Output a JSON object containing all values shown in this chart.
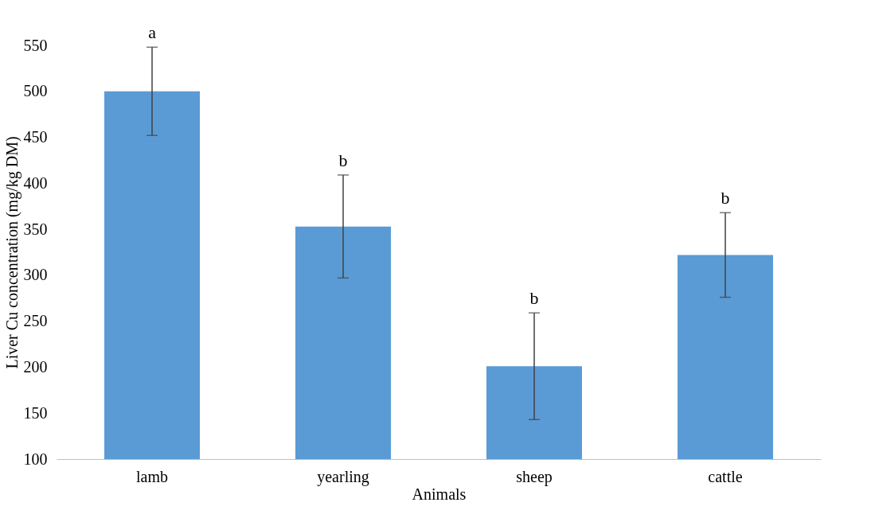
{
  "chart_data": {
    "type": "bar",
    "xlabel": "Animals",
    "ylabel": "Liver Cu concentration (mg/kg  DM)",
    "categories": [
      "lamb",
      "yearling",
      "sheep",
      "cattle"
    ],
    "values": [
      500,
      353,
      201,
      322
    ],
    "errors": [
      48,
      56,
      58,
      46
    ],
    "color": "#5b9bd5",
    "ylim": [
      100,
      550
    ],
    "yticks": [
      100,
      150,
      200,
      250,
      300,
      350,
      400,
      450,
      500,
      550
    ],
    "grid": false,
    "annotations": [
      {
        "text": "a",
        "x": "lamb",
        "y": 548
      },
      {
        "text": "b",
        "x": "yearling",
        "y": 409
      },
      {
        "text": "b",
        "x": "sheep",
        "y": 259
      },
      {
        "text": "b",
        "x": "cattle",
        "y": 368
      }
    ]
  }
}
